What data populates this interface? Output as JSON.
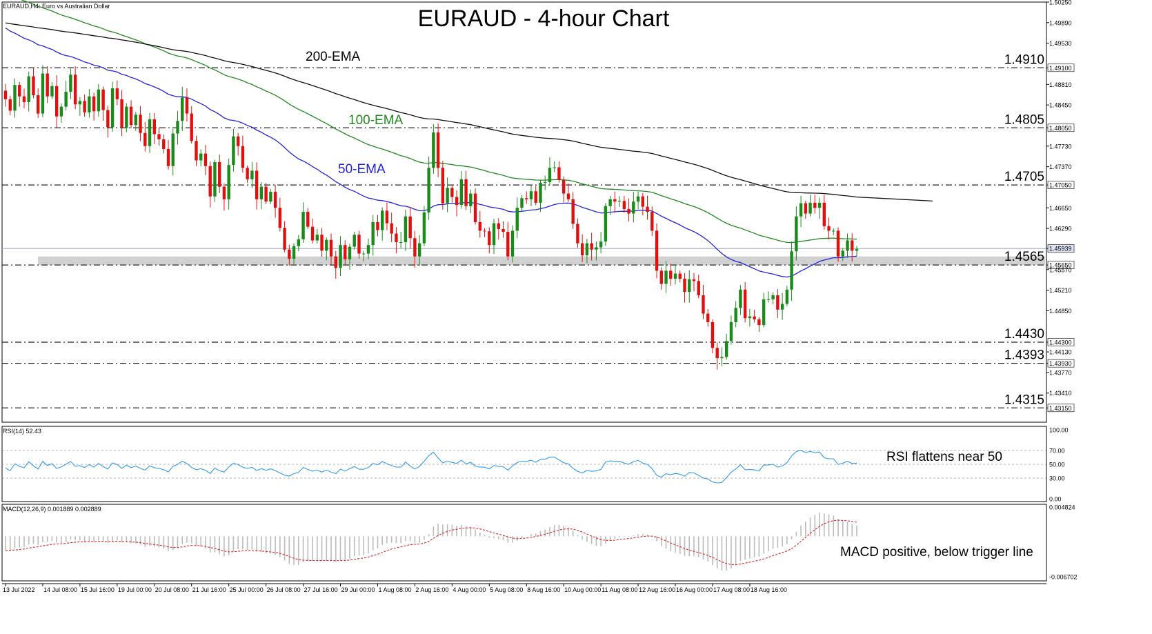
{
  "chart_data": {
    "type": "candlestick",
    "title": "EURAUD - 4-hour Chart",
    "subtitle": "EURAUD,H4: Euro vs Australian Dollar",
    "symbol_label": "EURAUD,H4: Euro vs Australian Dollar",
    "colors": {
      "bull": "#1a8a1a",
      "bear": "#e01010",
      "ema50": "#2222dd",
      "ema100": "#228822",
      "ema200": "#111111",
      "rsi": "#3399ee",
      "macd_signal": "#dd2222",
      "macd_hist": "#bbbbbb",
      "zone": "#cccccc"
    },
    "price_axis": {
      "range": [
        1.429,
        1.5025
      ],
      "ticks": [
        "1.50250",
        "1.49890",
        "1.49530",
        "1.49100",
        "1.48810",
        "1.48450",
        "1.48050",
        "1.47730",
        "1.47370",
        "1.47050",
        "1.46650",
        "1.46290",
        "1.45939",
        "1.45650",
        "1.45570",
        "1.45210",
        "1.44850",
        "1.44300",
        "1.44130",
        "1.43930",
        "1.43770",
        "1.43410",
        "1.43150"
      ],
      "tick_values": [
        1.5025,
        1.4989,
        1.4953,
        1.491,
        1.4881,
        1.4845,
        1.4805,
        1.4773,
        1.4737,
        1.4705,
        1.4665,
        1.4629,
        1.45939,
        1.4565,
        1.4557,
        1.4521,
        1.4485,
        1.443,
        1.4413,
        1.4393,
        1.4377,
        1.4341,
        1.4315
      ],
      "highlighted": [
        "1.49100",
        "1.48050",
        "1.47050",
        "1.45939",
        "1.45650",
        "1.44300",
        "1.43930",
        "1.43150"
      ],
      "current_price": 1.45939
    },
    "levels": [
      {
        "label": "1.4910",
        "value": 1.491
      },
      {
        "label": "1.4805",
        "value": 1.4805
      },
      {
        "label": "1.4705",
        "value": 1.4705
      },
      {
        "label": "1.4565",
        "value": 1.4565
      },
      {
        "label": "1.4430",
        "value": 1.443
      },
      {
        "label": "1.4393",
        "value": 1.4393
      },
      {
        "label": "1.4315",
        "value": 1.4315
      }
    ],
    "support_zone": [
      1.4565,
      1.458
    ],
    "ema_labels": {
      "ema200": "200-EMA",
      "ema100": "100-EMA",
      "ema50": "50-EMA"
    },
    "x_labels": [
      "13 Jul 2022",
      "14 Jul 08:00",
      "15 Jul 16:00",
      "19 Jul 00:00",
      "20 Jul 08:00",
      "21 Jul 16:00",
      "25 Jul 00:00",
      "26 Jul 08:00",
      "27 Jul 16:00",
      "29 Jul 00:00",
      "1 Aug 08:00",
      "2 Aug 16:00",
      "4 Aug 00:00",
      "5 Aug 08:00",
      "8 Aug 16:00",
      "10 Aug 00:00",
      "11 Aug 08:00",
      "12 Aug 16:00",
      "16 Aug 00:00",
      "17 Aug 08:00",
      "18 Aug 16:00"
    ],
    "x_label_positions": [
      0,
      8,
      16,
      24,
      32,
      40,
      48,
      56,
      64,
      72,
      80,
      88,
      96,
      104,
      112,
      120,
      128,
      136,
      144,
      152,
      160
    ],
    "close": [
      1.4855,
      1.4835,
      1.488,
      1.486,
      1.485,
      1.4895,
      1.4862,
      1.483,
      1.49,
      1.486,
      1.4878,
      1.4825,
      1.4842,
      1.4868,
      1.4898,
      1.4846,
      1.4852,
      1.4832,
      1.486,
      1.4834,
      1.4872,
      1.4836,
      1.4806,
      1.4874,
      1.4855,
      1.4805,
      1.4842,
      1.481,
      1.4828,
      1.4796,
      1.4773,
      1.482,
      1.4794,
      1.4785,
      1.4768,
      1.4738,
      1.4795,
      1.4817,
      1.4858,
      1.483,
      1.4782,
      1.4748,
      1.476,
      1.4738,
      1.4685,
      1.4745,
      1.4702,
      1.468,
      1.474,
      1.479,
      1.4773,
      1.4735,
      1.4715,
      1.473,
      1.468,
      1.4702,
      1.4676,
      1.4693,
      1.4665,
      1.463,
      1.4592,
      1.4576,
      1.4598,
      1.461,
      1.4658,
      1.4632,
      1.4608,
      1.4618,
      1.459,
      1.4609,
      1.458,
      1.456,
      1.46,
      1.4575,
      1.4597,
      1.4618,
      1.4585,
      1.4585,
      1.46,
      1.464,
      1.4626,
      1.466,
      1.4638,
      1.462,
      1.4605,
      1.4605,
      1.465,
      1.4612,
      1.458,
      1.4603,
      1.4657,
      1.4735,
      1.4797,
      1.4735,
      1.4673,
      1.47,
      1.4684,
      1.467,
      1.4715,
      1.4668,
      1.469,
      1.464,
      1.4625,
      1.4624,
      1.46,
      1.4638,
      1.4628,
      1.4623,
      1.458,
      1.4625,
      1.4665,
      1.4682,
      1.468,
      1.4694,
      1.4674,
      1.4709,
      1.471,
      1.4735,
      1.4736,
      1.4714,
      1.469,
      1.468,
      1.4637,
      1.4603,
      1.4582,
      1.4603,
      1.4592,
      1.4596,
      1.4606,
      1.4668,
      1.468,
      1.4676,
      1.4677,
      1.4663,
      1.4655,
      1.4676,
      1.4685,
      1.4667,
      1.4658,
      1.4625,
      1.4555,
      1.4532,
      1.4555,
      1.4541,
      1.455,
      1.4541,
      1.4518,
      1.454,
      1.4537,
      1.4512,
      1.448,
      1.4465,
      1.442,
      1.4402,
      1.4404,
      1.4432,
      1.4465,
      1.449,
      1.4522,
      1.4472,
      1.4475,
      1.447,
      1.446,
      1.4505,
      1.4505,
      1.4512,
      1.4487,
      1.4497,
      1.4522,
      1.4589,
      1.465,
      1.4673,
      1.4655,
      1.4674,
      1.4665,
      1.4674,
      1.4633,
      1.4625,
      1.4625,
      1.458,
      1.459,
      1.4608,
      1.459,
      1.4593
    ],
    "rsi": {
      "label": "RSI(14) 52.43",
      "value": 52.43,
      "levels": [
        30,
        50,
        70
      ],
      "ticks": [
        "100.00",
        "70.00",
        "50.00",
        "30.00",
        "0.00"
      ],
      "annotation": "RSI flattens near 50"
    },
    "macd": {
      "label": "MACD(12,26,9) 0.001889 0.002889",
      "ticks": [
        "0.004824",
        "-0.006702"
      ],
      "range": [
        -0.006702,
        0.004824
      ],
      "macd": 0.001889,
      "signal": 0.002889,
      "annotation": "MACD positive, below trigger line"
    }
  }
}
